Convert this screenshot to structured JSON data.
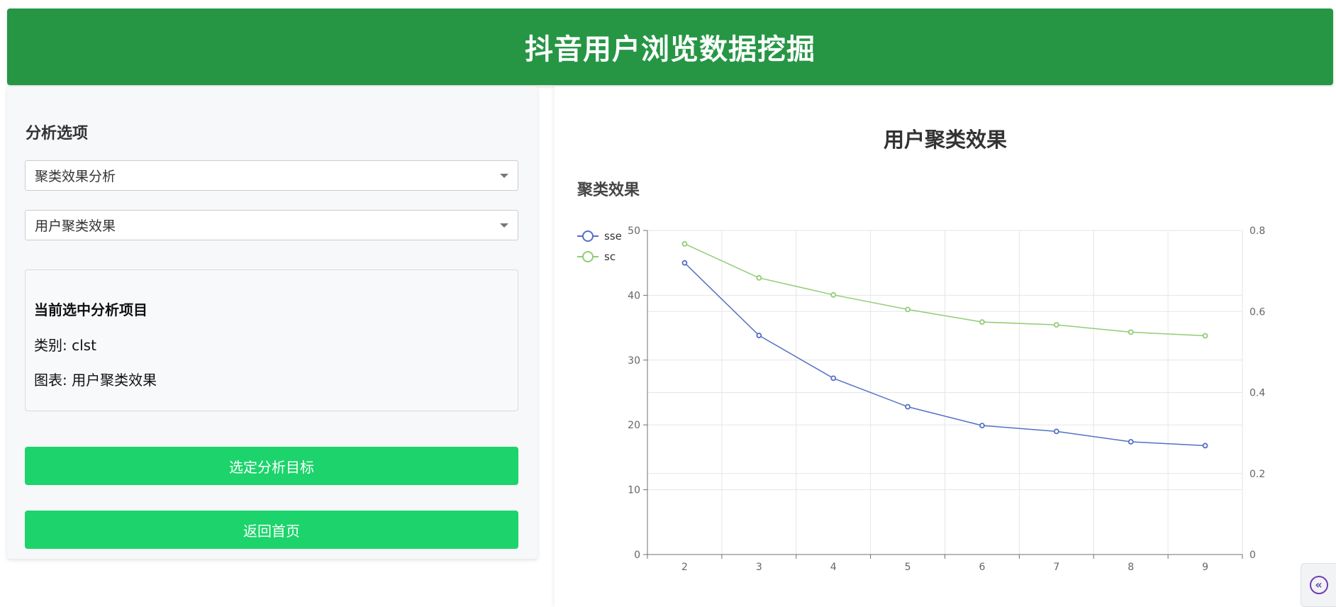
{
  "header": {
    "title": "抖音用户浏览数据挖掘"
  },
  "sidebar": {
    "title": "分析选项",
    "select_category": {
      "value": "聚类效果分析"
    },
    "select_chart": {
      "value": "用户聚类效果"
    },
    "info": {
      "title": "当前选中分析项目",
      "category_line": "类别: clst",
      "chart_line": "图表: 用户聚类效果"
    },
    "select_target_label": "选定分析目标",
    "home_label": "返回首页"
  },
  "main": {
    "heading": "用户聚类效果",
    "subheading": "聚类效果"
  },
  "chart_data": {
    "type": "line",
    "x": [
      2,
      3,
      4,
      5,
      6,
      7,
      8,
      9
    ],
    "series": [
      {
        "name": "sse",
        "axis": "left",
        "color": "#5470c6",
        "values": [
          45.0,
          33.8,
          27.2,
          22.8,
          19.9,
          19.0,
          17.4,
          16.8
        ]
      },
      {
        "name": "sc",
        "axis": "right",
        "color": "#91cc75",
        "values": [
          0.767,
          0.683,
          0.641,
          0.605,
          0.574,
          0.567,
          0.549,
          0.54
        ]
      }
    ],
    "y_left": {
      "min": 0,
      "max": 50,
      "ticks": [
        "0",
        "10",
        "20",
        "30",
        "40",
        "50"
      ]
    },
    "y_right": {
      "min": 0,
      "max": 0.8,
      "ticks": [
        "0",
        "0.2",
        "0.4",
        "0.6",
        "0.8"
      ]
    },
    "x_ticks": [
      "2",
      "3",
      "4",
      "5",
      "6",
      "7",
      "8",
      "9"
    ],
    "legend": "top-left",
    "grid": true
  },
  "icons": {
    "collapse": "double-chevron-left-icon"
  }
}
